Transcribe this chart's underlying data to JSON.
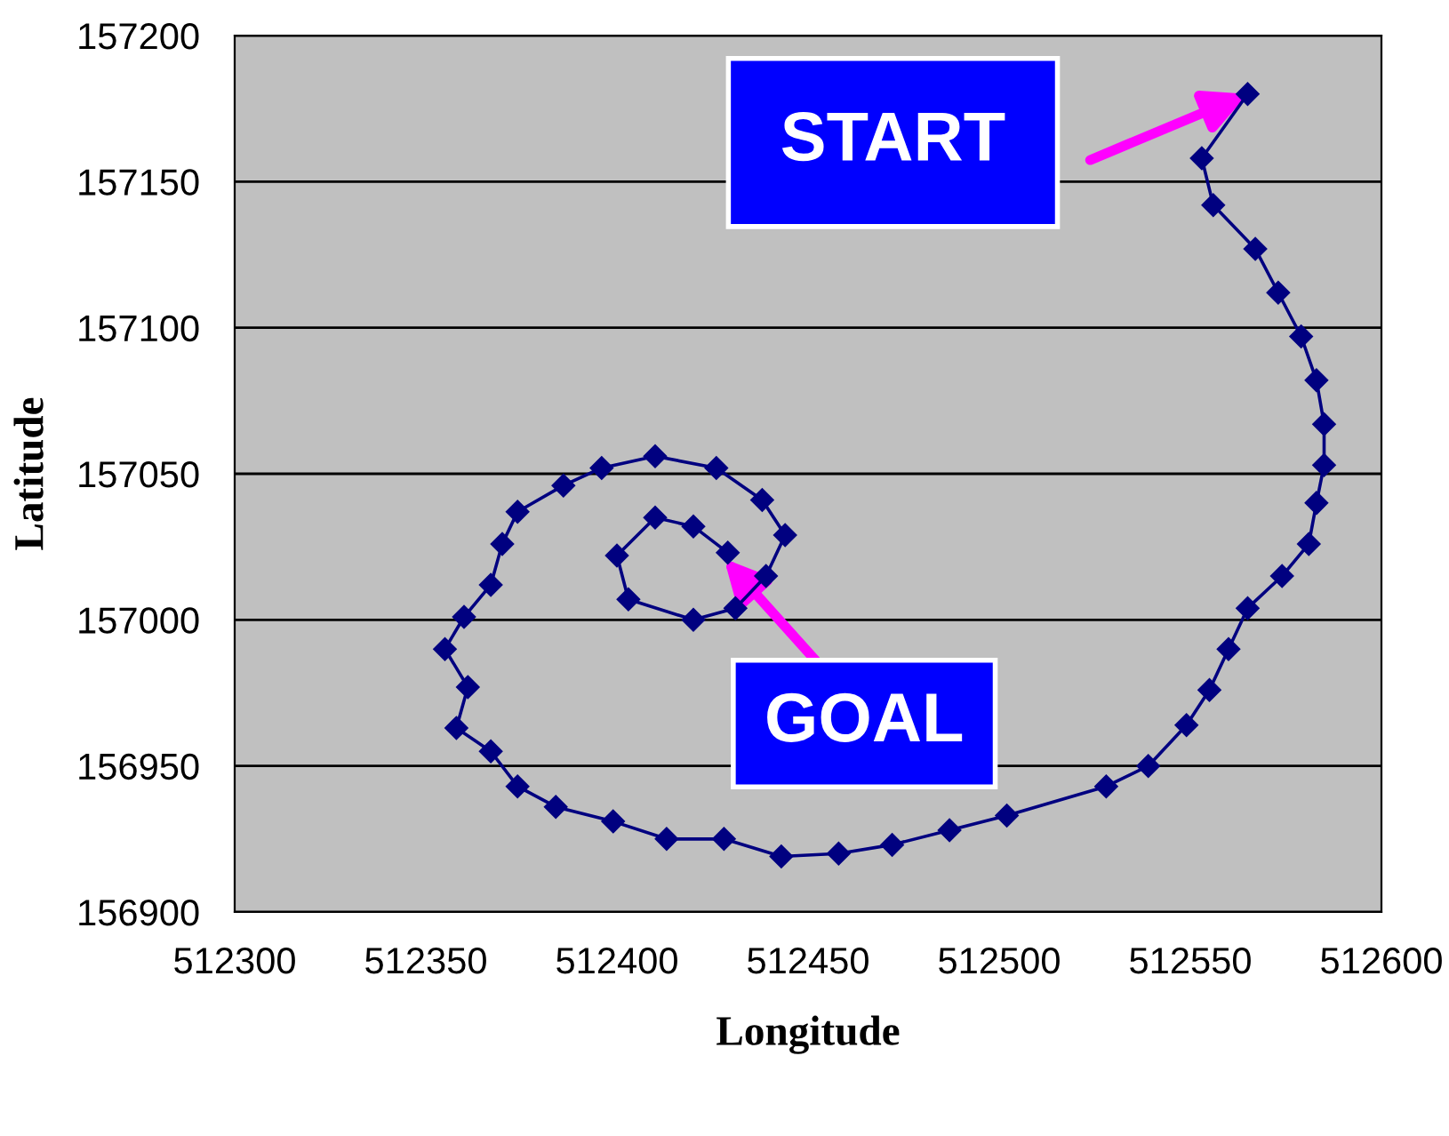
{
  "chart_data": {
    "type": "line",
    "xlabel": "Longitude",
    "ylabel": "Latitude",
    "xlim": [
      512300,
      512600
    ],
    "xticks": [
      512300,
      512350,
      512400,
      512450,
      512500,
      512550,
      512600
    ],
    "ylim": [
      156900,
      157200
    ],
    "yticks": [
      156900,
      156950,
      157000,
      157050,
      157100,
      157150,
      157200
    ],
    "grid": "y",
    "legend": false,
    "marker": "diamond",
    "line_style": "solid",
    "series": [
      {
        "color": "#000080",
        "x": [
          512565,
          512553,
          512556,
          512567,
          512573,
          512579,
          512583,
          512585,
          512585,
          512583,
          512581,
          512574,
          512565,
          512560,
          512555,
          512549,
          512539,
          512528,
          512502,
          512487,
          512472,
          512458,
          512443,
          512428,
          512413,
          512399,
          512384,
          512374,
          512367,
          512358,
          512361,
          512355,
          512360,
          512367,
          512370,
          512374,
          512386,
          512396,
          512410,
          512426,
          512438,
          512444,
          512439,
          512431,
          512420,
          512403,
          512400,
          512410,
          512420,
          512429
        ],
        "values": [
          157180,
          157158,
          157142,
          157127,
          157112,
          157097,
          157082,
          157067,
          157053,
          157040,
          157026,
          157015,
          157004,
          156990,
          156976,
          156964,
          156950,
          156943,
          156933,
          156928,
          156923,
          156920,
          156919,
          156925,
          156925,
          156931,
          156936,
          156943,
          156955,
          156963,
          156977,
          156990,
          157001,
          157012,
          157026,
          157037,
          157046,
          157052,
          157056,
          157052,
          157041,
          157029,
          157015,
          157004,
          157000,
          157007,
          157022,
          157035,
          157032,
          157023
        ]
      }
    ],
    "annotations": [
      {
        "text": "START",
        "x": 512565,
        "y": 157180
      },
      {
        "text": "GOAL",
        "x": 512428,
        "y": 157021
      }
    ]
  }
}
